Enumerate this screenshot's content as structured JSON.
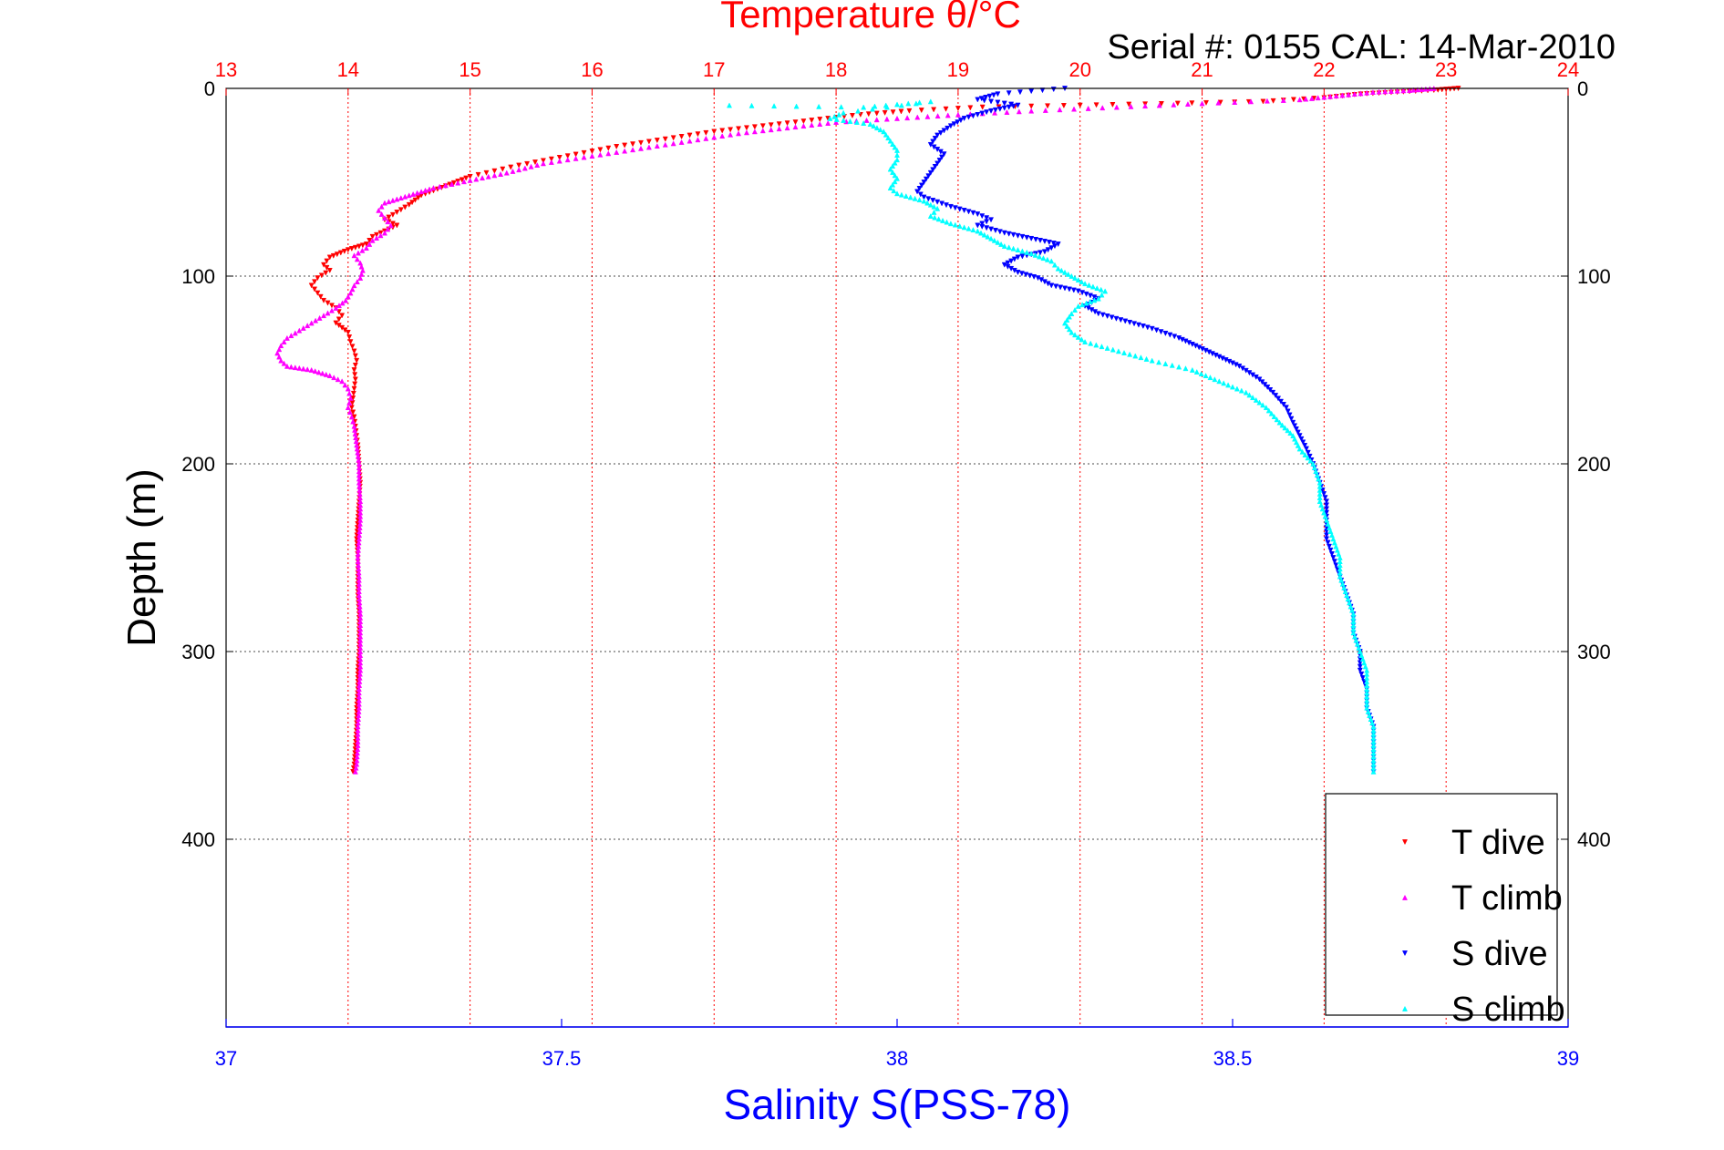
{
  "chart_data": {
    "type": "scatter",
    "title": "Temperature θ/°C",
    "subtitle": "Serial #: 0155  CAL: 14-Mar-2010",
    "xlabel_top": "Temperature θ/°C",
    "xlabel_bottom": "Salinity S(PSS-78)",
    "ylabel": "Depth (m)",
    "temperature_axis": {
      "range": [
        13,
        24
      ],
      "ticks": [
        "13",
        "14",
        "15",
        "16",
        "17",
        "18",
        "19",
        "20",
        "21",
        "22",
        "23",
        "24"
      ]
    },
    "salinity_axis": {
      "range": [
        37,
        39
      ],
      "ticks": [
        "37",
        "37.5",
        "38",
        "38.5",
        "39"
      ]
    },
    "depth_axis": {
      "range": [
        0,
        500
      ],
      "reversed": true,
      "ticks": [
        "0",
        "100",
        "200",
        "300",
        "400"
      ]
    },
    "grid": true,
    "legend_position": "bottom-right",
    "series": [
      {
        "name": "T dive",
        "axis": "temperature",
        "color": "#ff0000",
        "marker": "triangle-down",
        "points": [
          [
            23.1,
            0
          ],
          [
            22.9,
            1
          ],
          [
            22.6,
            2
          ],
          [
            22.3,
            3
          ],
          [
            22.0,
            5
          ],
          [
            21.5,
            7
          ],
          [
            20.8,
            8
          ],
          [
            20.0,
            9
          ],
          [
            19.2,
            10
          ],
          [
            18.6,
            12
          ],
          [
            18.2,
            14
          ],
          [
            17.8,
            17
          ],
          [
            17.4,
            20
          ],
          [
            17.0,
            23
          ],
          [
            16.6,
            27
          ],
          [
            16.2,
            31
          ],
          [
            15.8,
            36
          ],
          [
            15.4,
            41
          ],
          [
            15.0,
            47
          ],
          [
            14.8,
            52
          ],
          [
            14.6,
            57
          ],
          [
            14.5,
            62
          ],
          [
            14.4,
            66
          ],
          [
            14.3,
            70
          ],
          [
            14.4,
            73
          ],
          [
            14.3,
            76
          ],
          [
            14.2,
            79
          ],
          [
            14.15,
            83
          ],
          [
            14.0,
            86
          ],
          [
            13.85,
            90
          ],
          [
            13.8,
            94
          ],
          [
            13.85,
            97
          ],
          [
            13.75,
            101
          ],
          [
            13.7,
            105
          ],
          [
            13.75,
            109
          ],
          [
            13.8,
            113
          ],
          [
            13.9,
            117
          ],
          [
            13.95,
            121
          ],
          [
            13.9,
            125
          ],
          [
            14.0,
            130
          ],
          [
            14.02,
            135
          ],
          [
            14.05,
            140
          ],
          [
            14.07,
            145
          ],
          [
            14.05,
            150
          ],
          [
            14.06,
            155
          ],
          [
            14.05,
            160
          ],
          [
            14.04,
            165
          ],
          [
            14.03,
            170
          ],
          [
            14.05,
            175
          ],
          [
            14.06,
            180
          ],
          [
            14.07,
            185
          ],
          [
            14.08,
            190
          ],
          [
            14.09,
            200
          ],
          [
            14.1,
            210
          ],
          [
            14.09,
            220
          ],
          [
            14.08,
            230
          ],
          [
            14.07,
            240
          ],
          [
            14.08,
            250
          ],
          [
            14.08,
            260
          ],
          [
            14.08,
            270
          ],
          [
            14.09,
            280
          ],
          [
            14.09,
            290
          ],
          [
            14.09,
            300
          ],
          [
            14.08,
            310
          ],
          [
            14.08,
            320
          ],
          [
            14.07,
            330
          ],
          [
            14.07,
            340
          ],
          [
            14.06,
            350
          ],
          [
            14.05,
            360
          ],
          [
            14.04,
            364
          ]
        ]
      },
      {
        "name": "T climb",
        "axis": "temperature",
        "color": "#ff00ff",
        "marker": "triangle-up",
        "points": [
          [
            22.9,
            0
          ],
          [
            22.7,
            1
          ],
          [
            22.4,
            2
          ],
          [
            22.1,
            4
          ],
          [
            21.8,
            6
          ],
          [
            21.0,
            8
          ],
          [
            20.3,
            10
          ],
          [
            19.6,
            12
          ],
          [
            19.0,
            14
          ],
          [
            18.5,
            16
          ],
          [
            18.0,
            18
          ],
          [
            17.6,
            21
          ],
          [
            17.2,
            24
          ],
          [
            16.8,
            28
          ],
          [
            16.4,
            32
          ],
          [
            16.0,
            36
          ],
          [
            15.6,
            40
          ],
          [
            15.3,
            45
          ],
          [
            15.0,
            49
          ],
          [
            14.7,
            53
          ],
          [
            14.5,
            57
          ],
          [
            14.3,
            61
          ],
          [
            14.25,
            65
          ],
          [
            14.3,
            69
          ],
          [
            14.35,
            73
          ],
          [
            14.3,
            77
          ],
          [
            14.2,
            81
          ],
          [
            14.15,
            85
          ],
          [
            14.05,
            89
          ],
          [
            14.1,
            93
          ],
          [
            14.12,
            97
          ],
          [
            14.1,
            101
          ],
          [
            14.05,
            105
          ],
          [
            14.02,
            109
          ],
          [
            13.98,
            113
          ],
          [
            13.9,
            117
          ],
          [
            13.8,
            121
          ],
          [
            13.7,
            125
          ],
          [
            13.6,
            129
          ],
          [
            13.5,
            133
          ],
          [
            13.45,
            137
          ],
          [
            13.42,
            141
          ],
          [
            13.45,
            145
          ],
          [
            13.5,
            148
          ],
          [
            13.7,
            150
          ],
          [
            13.85,
            153
          ],
          [
            13.95,
            156
          ],
          [
            14.0,
            160
          ],
          [
            14.02,
            165
          ],
          [
            14.0,
            170
          ],
          [
            14.03,
            175
          ],
          [
            14.05,
            180
          ],
          [
            14.07,
            190
          ],
          [
            14.09,
            200
          ],
          [
            14.09,
            210
          ],
          [
            14.1,
            220
          ],
          [
            14.1,
            230
          ],
          [
            14.09,
            240
          ],
          [
            14.08,
            250
          ],
          [
            14.09,
            260
          ],
          [
            14.09,
            270
          ],
          [
            14.1,
            280
          ],
          [
            14.1,
            290
          ],
          [
            14.1,
            300
          ],
          [
            14.1,
            310
          ],
          [
            14.09,
            320
          ],
          [
            14.09,
            330
          ],
          [
            14.08,
            340
          ],
          [
            14.08,
            350
          ],
          [
            14.07,
            360
          ],
          [
            14.06,
            364
          ]
        ]
      },
      {
        "name": "S dive",
        "axis": "salinity",
        "color": "#0000ff",
        "marker": "triangle-down",
        "points": [
          [
            38.25,
            0
          ],
          [
            38.15,
            3
          ],
          [
            38.12,
            6
          ],
          [
            38.18,
            9
          ],
          [
            38.14,
            12
          ],
          [
            38.1,
            16
          ],
          [
            38.08,
            20
          ],
          [
            38.06,
            25
          ],
          [
            38.05,
            30
          ],
          [
            38.07,
            35
          ],
          [
            38.06,
            40
          ],
          [
            38.05,
            45
          ],
          [
            38.04,
            50
          ],
          [
            38.03,
            55
          ],
          [
            38.04,
            58
          ],
          [
            38.08,
            63
          ],
          [
            38.12,
            67
          ],
          [
            38.14,
            70
          ],
          [
            38.12,
            73
          ],
          [
            38.16,
            77
          ],
          [
            38.2,
            80
          ],
          [
            38.24,
            83
          ],
          [
            38.22,
            87
          ],
          [
            38.18,
            90
          ],
          [
            38.16,
            94
          ],
          [
            38.18,
            98
          ],
          [
            38.21,
            101
          ],
          [
            38.23,
            105
          ],
          [
            38.27,
            108
          ],
          [
            38.3,
            112
          ],
          [
            38.28,
            116
          ],
          [
            38.3,
            120
          ],
          [
            38.34,
            124
          ],
          [
            38.38,
            128
          ],
          [
            38.42,
            133
          ],
          [
            38.45,
            138
          ],
          [
            38.48,
            143
          ],
          [
            38.51,
            148
          ],
          [
            38.54,
            155
          ],
          [
            38.56,
            162
          ],
          [
            38.58,
            170
          ],
          [
            38.59,
            178
          ],
          [
            38.6,
            185
          ],
          [
            38.61,
            192
          ],
          [
            38.62,
            200
          ],
          [
            38.63,
            210
          ],
          [
            38.64,
            220
          ],
          [
            38.64,
            230
          ],
          [
            38.64,
            240
          ],
          [
            38.65,
            250
          ],
          [
            38.66,
            260
          ],
          [
            38.67,
            270
          ],
          [
            38.68,
            280
          ],
          [
            38.68,
            290
          ],
          [
            38.69,
            300
          ],
          [
            38.69,
            310
          ],
          [
            38.7,
            320
          ],
          [
            38.7,
            330
          ],
          [
            38.71,
            340
          ],
          [
            38.71,
            350
          ],
          [
            38.71,
            360
          ],
          [
            38.71,
            364
          ]
        ]
      },
      {
        "name": "S climb",
        "axis": "salinity",
        "color": "#00ffff",
        "marker": "triangle-up",
        "points": [
          [
            37.75,
            9
          ],
          [
            37.95,
            10
          ],
          [
            38.05,
            7
          ],
          [
            37.92,
            13
          ],
          [
            37.9,
            16
          ],
          [
            37.96,
            19
          ],
          [
            37.98,
            23
          ],
          [
            37.99,
            28
          ],
          [
            38.0,
            33
          ],
          [
            38.0,
            38
          ],
          [
            37.99,
            43
          ],
          [
            38.0,
            48
          ],
          [
            37.99,
            53
          ],
          [
            38.0,
            56
          ],
          [
            38.04,
            60
          ],
          [
            38.06,
            64
          ],
          [
            38.05,
            68
          ],
          [
            38.08,
            72
          ],
          [
            38.12,
            76
          ],
          [
            38.14,
            80
          ],
          [
            38.16,
            84
          ],
          [
            38.2,
            88
          ],
          [
            38.23,
            92
          ],
          [
            38.24,
            96
          ],
          [
            38.26,
            100
          ],
          [
            38.28,
            104
          ],
          [
            38.31,
            108
          ],
          [
            38.3,
            112
          ],
          [
            38.27,
            116
          ],
          [
            38.26,
            120
          ],
          [
            38.25,
            125
          ],
          [
            38.26,
            130
          ],
          [
            38.28,
            135
          ],
          [
            38.33,
            140
          ],
          [
            38.38,
            145
          ],
          [
            38.44,
            150
          ],
          [
            38.48,
            156
          ],
          [
            38.52,
            162
          ],
          [
            38.55,
            170
          ],
          [
            38.57,
            178
          ],
          [
            38.59,
            185
          ],
          [
            38.6,
            192
          ],
          [
            38.62,
            200
          ],
          [
            38.63,
            210
          ],
          [
            38.63,
            220
          ],
          [
            38.64,
            230
          ],
          [
            38.65,
            240
          ],
          [
            38.66,
            250
          ],
          [
            38.66,
            260
          ],
          [
            38.67,
            270
          ],
          [
            38.68,
            280
          ],
          [
            38.68,
            290
          ],
          [
            38.69,
            300
          ],
          [
            38.7,
            310
          ],
          [
            38.7,
            320
          ],
          [
            38.7,
            330
          ],
          [
            38.71,
            340
          ],
          [
            38.71,
            350
          ],
          [
            38.71,
            360
          ],
          [
            38.71,
            364
          ]
        ]
      }
    ]
  }
}
